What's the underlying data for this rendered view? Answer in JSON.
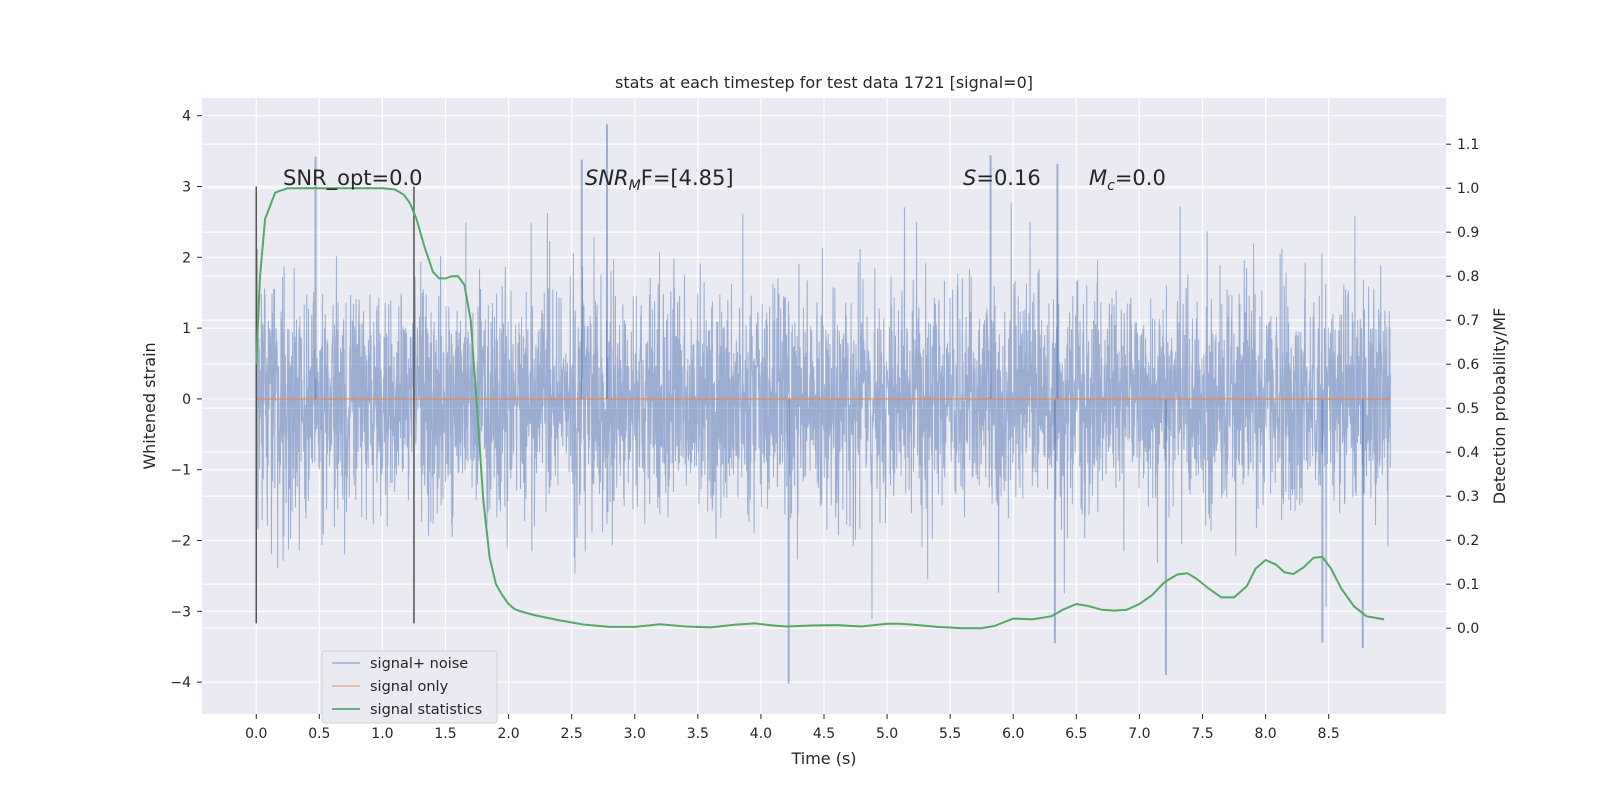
{
  "chart_data": {
    "type": "line",
    "title": "stats at each timestep for test data 1721 [signal=0]",
    "xlabel": "Time (s)",
    "ylabel": "Whitened strain",
    "ylabel_right": "Detection probability/MF",
    "xlim": [
      -0.43,
      9.43
    ],
    "ylim": [
      -4.45,
      4.25
    ],
    "ylim_right": [
      -0.195,
      1.205
    ],
    "x_ticks": [
      "0.0",
      "0.5",
      "1.0",
      "1.5",
      "2.0",
      "2.5",
      "3.0",
      "3.5",
      "4.0",
      "4.5",
      "5.0",
      "5.5",
      "6.0",
      "6.5",
      "7.0",
      "7.5",
      "8.0",
      "8.5"
    ],
    "y_ticks": [
      "−4",
      "−3",
      "−2",
      "−1",
      "0",
      "1",
      "2",
      "3",
      "4"
    ],
    "y_right_ticks": [
      "0.0",
      "0.1",
      "0.2",
      "0.3",
      "0.4",
      "0.5",
      "0.6",
      "0.7",
      "0.8",
      "0.9",
      "1.0",
      "1.1"
    ],
    "grid": true,
    "legend_position": "lower-left",
    "colors": {
      "background": "#eaeaf2",
      "grid": "#ffffff",
      "noise": "#4c72b0",
      "signal": "#dd8452",
      "statistics": "#55a868",
      "marker": "#555555"
    },
    "series": [
      {
        "name": "signal+ noise",
        "style": "dense noise band",
        "x_range": [
          0.0,
          8.99
        ],
        "core_band": [
          -1.6,
          1.5
        ],
        "notable_peaks": [
          [
            2.78,
            3.88
          ],
          [
            0.47,
            3.42
          ],
          [
            2.58,
            3.38
          ],
          [
            6.35,
            3.32
          ],
          [
            5.82,
            3.44
          ]
        ],
        "notable_troughs": [
          [
            4.22,
            -4.02
          ],
          [
            7.21,
            -3.9
          ],
          [
            8.77,
            -3.52
          ],
          [
            8.45,
            -3.44
          ],
          [
            6.33,
            -3.45
          ]
        ]
      },
      {
        "name": "signal only",
        "x": [
          0.0,
          8.99
        ],
        "y": [
          0.0,
          0.0
        ]
      },
      {
        "name": "signal statistics",
        "axis": "right",
        "x": [
          0.0,
          0.03,
          0.07,
          0.15,
          0.25,
          0.4,
          0.6,
          0.8,
          1.0,
          1.1,
          1.17,
          1.22,
          1.27,
          1.33,
          1.4,
          1.45,
          1.5,
          1.55,
          1.6,
          1.65,
          1.7,
          1.75,
          1.8,
          1.85,
          1.9,
          1.95,
          2.0,
          2.05,
          2.1,
          2.2,
          2.4,
          2.6,
          2.8,
          3.0,
          3.2,
          3.4,
          3.6,
          3.8,
          3.95,
          4.1,
          4.2,
          4.4,
          4.6,
          4.8,
          5.0,
          5.1,
          5.2,
          5.4,
          5.6,
          5.75,
          5.85,
          6.0,
          6.15,
          6.3,
          6.4,
          6.5,
          6.6,
          6.7,
          6.8,
          6.9,
          7.0,
          7.1,
          7.2,
          7.3,
          7.38,
          7.45,
          7.55,
          7.65,
          7.75,
          7.85,
          7.92,
          8.0,
          8.08,
          8.15,
          8.22,
          8.3,
          8.38,
          8.45,
          8.52,
          8.6,
          8.7,
          8.8,
          8.9,
          8.94
        ],
        "y": [
          0.6,
          0.8,
          0.93,
          0.99,
          1.0,
          1.0,
          1.0,
          1.0,
          1.0,
          0.997,
          0.985,
          0.965,
          0.93,
          0.87,
          0.81,
          0.795,
          0.795,
          0.8,
          0.8,
          0.78,
          0.7,
          0.5,
          0.29,
          0.16,
          0.1,
          0.075,
          0.055,
          0.043,
          0.038,
          0.03,
          0.018,
          0.008,
          0.003,
          0.003,
          0.009,
          0.004,
          0.002,
          0.008,
          0.011,
          0.006,
          0.004,
          0.006,
          0.007,
          0.004,
          0.01,
          0.01,
          0.008,
          0.003,
          0.0,
          0.0,
          0.005,
          0.022,
          0.02,
          0.027,
          0.043,
          0.055,
          0.05,
          0.042,
          0.04,
          0.042,
          0.055,
          0.075,
          0.105,
          0.122,
          0.125,
          0.113,
          0.09,
          0.07,
          0.07,
          0.095,
          0.135,
          0.155,
          0.145,
          0.127,
          0.123,
          0.138,
          0.16,
          0.162,
          0.135,
          0.09,
          0.05,
          0.027,
          0.022,
          0.02
        ]
      }
    ],
    "vertical_markers": [
      {
        "x": 0.0,
        "y_range": [
          -3.17,
          3.0
        ]
      },
      {
        "x": 1.25,
        "y_range": [
          -3.17,
          3.0
        ]
      }
    ],
    "annotations": {
      "snr_opt": "SNR_opt=0.0",
      "snr_mf_prefix": "SNR",
      "snr_mf_sub": "M",
      "snr_mf_suffix": "F=[4.85]",
      "s_symbol": "S",
      "s_value": "=0.16",
      "mc_symbol": "M",
      "mc_sub": "c",
      "mc_value": "=0.0"
    }
  }
}
